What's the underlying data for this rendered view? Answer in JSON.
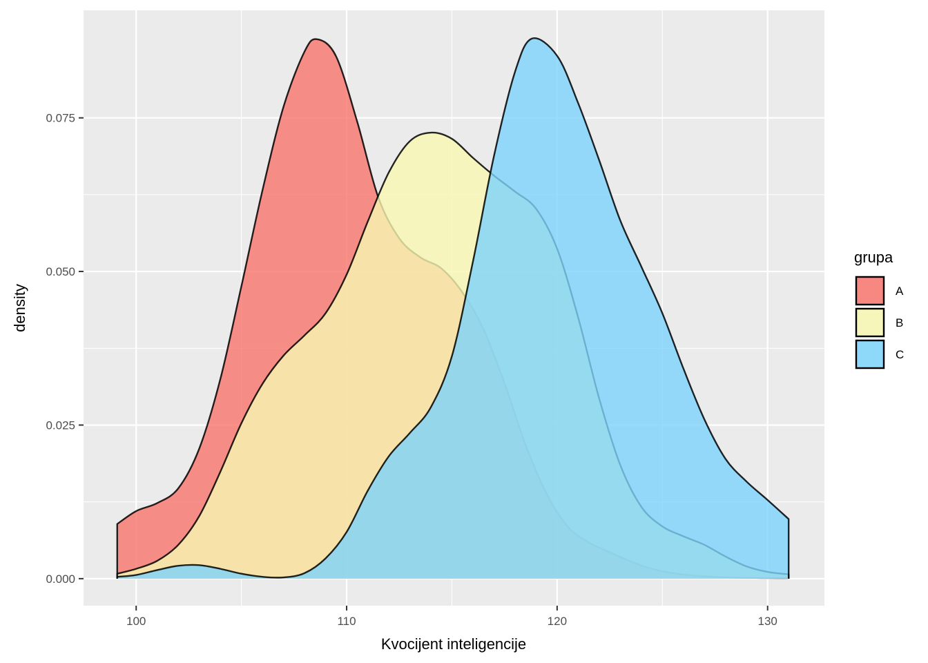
{
  "chart_data": {
    "type": "area",
    "subtype": "density",
    "xlabel": "Kvocijent inteligencije",
    "ylabel": "density",
    "xlim": [
      97.5,
      132.7
    ],
    "ylim": [
      -0.0044,
      0.0925
    ],
    "x_ticks": [
      100,
      110,
      120,
      130
    ],
    "x_tick_labels": [
      "100",
      "110",
      "120",
      "130"
    ],
    "y_ticks": [
      0,
      0.025,
      0.05,
      0.075
    ],
    "y_tick_labels": [
      "0.000",
      "0.025",
      "0.050",
      "0.075"
    ],
    "grid": true,
    "legend": {
      "title": "grupa",
      "position": "right"
    },
    "series": [
      {
        "name": "A",
        "color": "#F8766D",
        "points": [
          [
            99.1,
            0.0089
          ],
          [
            100,
            0.011
          ],
          [
            101,
            0.0123
          ],
          [
            102,
            0.0147
          ],
          [
            103,
            0.0212
          ],
          [
            104,
            0.0325
          ],
          [
            105,
            0.0476
          ],
          [
            106,
            0.0632
          ],
          [
            107,
            0.0768
          ],
          [
            108,
            0.0858
          ],
          [
            108.6,
            0.0878
          ],
          [
            109.5,
            0.085
          ],
          [
            110.5,
            0.0744
          ],
          [
            111.5,
            0.0621
          ],
          [
            112.5,
            0.0554
          ],
          [
            113.5,
            0.0523
          ],
          [
            114.5,
            0.0505
          ],
          [
            115.5,
            0.0466
          ],
          [
            116.5,
            0.0406
          ],
          [
            117.5,
            0.0318
          ],
          [
            118.5,
            0.0218
          ],
          [
            119.5,
            0.0138
          ],
          [
            120.5,
            0.0085
          ],
          [
            121.5,
            0.0059
          ],
          [
            122.5,
            0.0043
          ],
          [
            123.5,
            0.0028
          ],
          [
            124.5,
            0.0016
          ],
          [
            125.5,
            0.0009
          ],
          [
            126.5,
            0.0005
          ],
          [
            128,
            0.0002
          ],
          [
            130,
            0.0001
          ],
          [
            131,
            0.0001
          ]
        ]
      },
      {
        "name": "B",
        "color": "#F7F7B2",
        "points": [
          [
            99.1,
            0.0008
          ],
          [
            100,
            0.0016
          ],
          [
            101,
            0.0029
          ],
          [
            102,
            0.0055
          ],
          [
            103,
            0.0102
          ],
          [
            104,
            0.0174
          ],
          [
            105,
            0.0253
          ],
          [
            106,
            0.0317
          ],
          [
            107,
            0.0363
          ],
          [
            108,
            0.0396
          ],
          [
            109,
            0.0432
          ],
          [
            110,
            0.0495
          ],
          [
            111,
            0.0581
          ],
          [
            112,
            0.0661
          ],
          [
            113,
            0.0712
          ],
          [
            114,
            0.0726
          ],
          [
            115,
            0.0716
          ],
          [
            116,
            0.0685
          ],
          [
            117,
            0.0656
          ],
          [
            118,
            0.063
          ],
          [
            119,
            0.0602
          ],
          [
            120,
            0.0537
          ],
          [
            121,
            0.0425
          ],
          [
            122,
            0.0293
          ],
          [
            123,
            0.0185
          ],
          [
            124,
            0.0117
          ],
          [
            125,
            0.0085
          ],
          [
            126,
            0.0069
          ],
          [
            127,
            0.0055
          ],
          [
            128,
            0.0036
          ],
          [
            129,
            0.002
          ],
          [
            130,
            0.0011
          ],
          [
            131,
            0.0007
          ]
        ]
      },
      {
        "name": "C",
        "color": "#7DD3FB",
        "points": [
          [
            99.1,
            0.0003
          ],
          [
            100,
            0.0006
          ],
          [
            101,
            0.0014
          ],
          [
            102,
            0.0021
          ],
          [
            103,
            0.0022
          ],
          [
            104,
            0.0016
          ],
          [
            105,
            0.0008
          ],
          [
            106,
            0.0003
          ],
          [
            107,
            0.0002
          ],
          [
            108,
            0.0009
          ],
          [
            109,
            0.0033
          ],
          [
            110,
            0.0076
          ],
          [
            111,
            0.0143
          ],
          [
            112,
            0.0199
          ],
          [
            113,
            0.0237
          ],
          [
            114,
            0.0279
          ],
          [
            115,
            0.0362
          ],
          [
            116,
            0.0516
          ],
          [
            117,
            0.0688
          ],
          [
            118,
            0.0825
          ],
          [
            118.8,
            0.0879
          ],
          [
            120,
            0.0851
          ],
          [
            121,
            0.0774
          ],
          [
            122,
            0.0681
          ],
          [
            123,
            0.0583
          ],
          [
            124,
            0.0508
          ],
          [
            125,
            0.0432
          ],
          [
            126,
            0.0342
          ],
          [
            127,
            0.0259
          ],
          [
            128,
            0.0195
          ],
          [
            129,
            0.0158
          ],
          [
            130,
            0.0128
          ],
          [
            131,
            0.0097
          ]
        ]
      }
    ]
  }
}
